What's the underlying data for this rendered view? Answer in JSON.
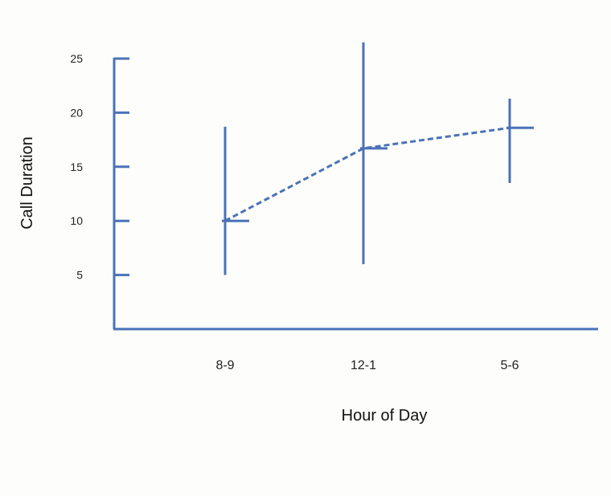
{
  "chart_data": {
    "type": "line",
    "title": "",
    "xlabel": "Hour of Day",
    "ylabel": "Call Duration",
    "categories": [
      "8-9",
      "12-1",
      "5-6"
    ],
    "series": [
      {
        "name": "Call Duration",
        "values": [
          10,
          16.7,
          18.6
        ],
        "error_low": [
          5,
          6,
          13.5
        ],
        "error_high": [
          18.7,
          26.5,
          21.3
        ]
      }
    ],
    "ylim": [
      0,
      25
    ],
    "yticks": [
      5,
      10,
      15,
      20,
      25
    ],
    "line_style": "dashed",
    "color": "#4a72b8",
    "grid": false
  }
}
